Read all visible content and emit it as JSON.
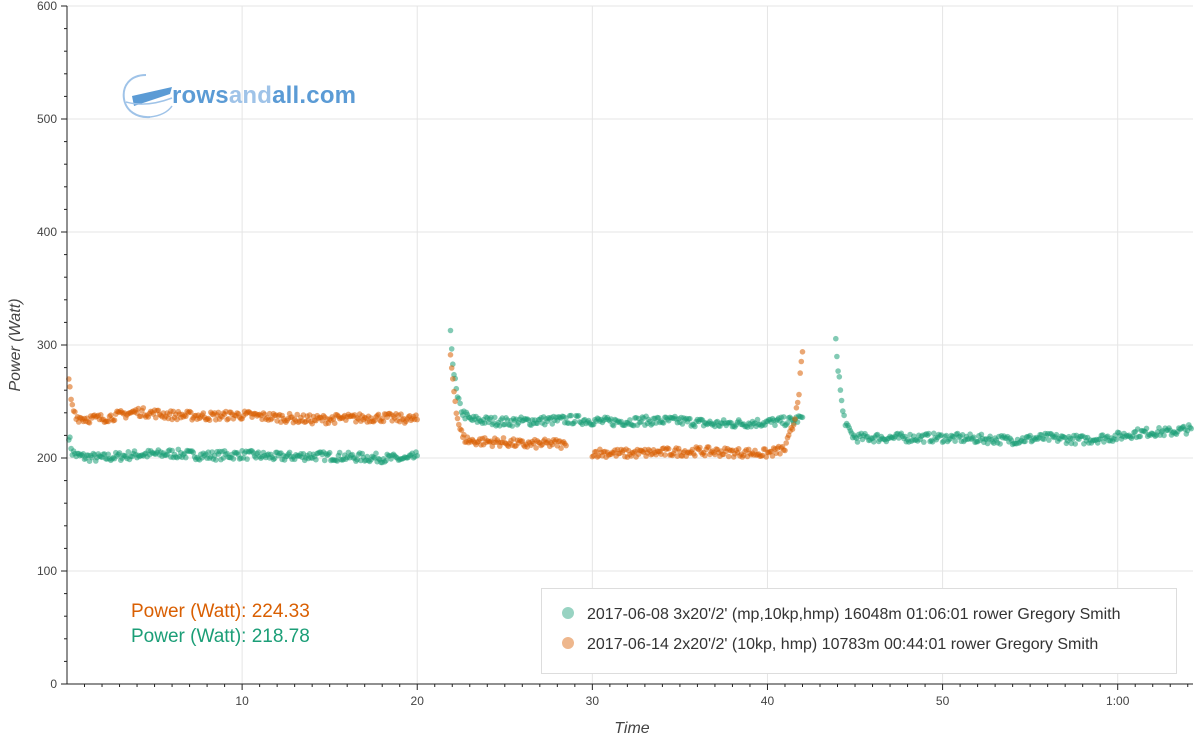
{
  "logo": {
    "part1": "rows",
    "part2": "and",
    "part3": "all",
    "part4": ".com",
    "color": "#5b9bd5",
    "color_light": "#9fc3e8"
  },
  "annotations": [
    {
      "text": "Power (Watt): 224.33",
      "color": "#d95f02"
    },
    {
      "text": "Power (Watt): 218.78",
      "color": "#1b9e77"
    }
  ],
  "chart_data": {
    "type": "scatter",
    "xlabel": "Time",
    "ylabel": "Power (Watt)",
    "xlim": [
      0,
      64.3
    ],
    "ylim": [
      0,
      600
    ],
    "x_ticks": [
      {
        "value": 10,
        "label": "10"
      },
      {
        "value": 20,
        "label": "20"
      },
      {
        "value": 30,
        "label": "30"
      },
      {
        "value": 40,
        "label": "40"
      },
      {
        "value": 50,
        "label": "50"
      },
      {
        "value": 60,
        "label": "1:00"
      }
    ],
    "y_ticks": [
      {
        "value": 0,
        "label": "0"
      },
      {
        "value": 100,
        "label": "100"
      },
      {
        "value": 200,
        "label": "200"
      },
      {
        "value": 300,
        "label": "300"
      },
      {
        "value": 400,
        "label": "400"
      },
      {
        "value": 500,
        "label": "500"
      },
      {
        "value": 600,
        "label": "600"
      }
    ],
    "grid": true,
    "legend_position": "bottom-right",
    "series": [
      {
        "name": "2017-06-08 3x20'/2' (mp,10kp,hmp) 16048m 01:06:01 rower Gregory Smith",
        "color": "#1b9e77",
        "segments": [
          {
            "x": [
              0.1,
              0.3,
              0.6,
              1,
              2,
              4,
              6,
              8,
              10,
              12,
              14,
              16,
              18,
              19.5,
              20
            ],
            "y": [
              220,
              205,
              202,
              201,
              200,
              203,
              204,
              202,
              203,
              201,
              202,
              201,
              200,
              199,
              202
            ]
          },
          {
            "x": [
              21.9,
              22.1,
              22.3,
              22.6,
              23,
              25,
              27,
              29,
              31,
              33,
              35,
              37,
              39,
              40.5,
              41.5,
              42
            ],
            "y": [
              309,
              275,
              252,
              240,
              234,
              232,
              233,
              234,
              232,
              233,
              233,
              230,
              231,
              232,
              233,
              236
            ]
          },
          {
            "x": [
              43.9,
              44.1,
              44.3,
              44.6,
              45,
              47,
              50,
              52,
              54,
              56,
              58,
              60,
              61,
              62,
              63,
              64.2
            ],
            "y": [
              302,
              270,
              240,
              225,
              218,
              218,
              218,
              217,
              216,
              218,
              216,
              219,
              222,
              223,
              223,
              226
            ]
          }
        ]
      },
      {
        "name": "2017-06-14 2x20'/2' (10kp, hmp) 10783m 00:44:01 rower Gregory Smith",
        "color": "#d95f02",
        "segments": [
          {
            "x": [
              0.1,
              0.3,
              0.6,
              1,
              2,
              4,
              6,
              8,
              10,
              12,
              14,
              16,
              18,
              20
            ],
            "y": [
              268,
              245,
              236,
              235,
              235,
              241,
              238,
              237,
              238,
              236,
              234,
              235,
              236,
              234
            ]
          },
          {
            "x": [
              21.9,
              22.1,
              22.3,
              22.6,
              23,
              25,
              26,
              28,
              28.5
            ],
            "y": [
              290,
              260,
              235,
              218,
              215,
              214,
              212,
              213,
              211
            ]
          },
          {
            "x": [
              30,
              32,
              34,
              36,
              38,
              40,
              41,
              41.5,
              41.8,
              42
            ],
            "y": [
              205,
              204,
              205,
              206,
              205,
              204,
              208,
              230,
              260,
              294
            ]
          }
        ]
      }
    ]
  }
}
